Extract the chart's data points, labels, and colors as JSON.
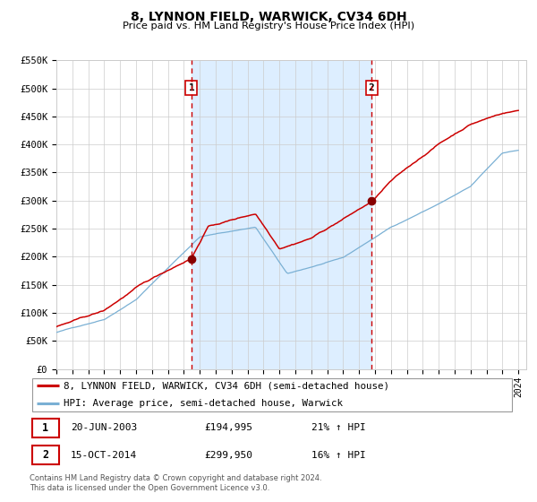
{
  "title": "8, LYNNON FIELD, WARWICK, CV34 6DH",
  "subtitle": "Price paid vs. HM Land Registry's House Price Index (HPI)",
  "ylim": [
    0,
    550000
  ],
  "yticks": [
    0,
    50000,
    100000,
    150000,
    200000,
    250000,
    300000,
    350000,
    400000,
    450000,
    500000,
    550000
  ],
  "ytick_labels": [
    "£0",
    "£50K",
    "£100K",
    "£150K",
    "£200K",
    "£250K",
    "£300K",
    "£350K",
    "£400K",
    "£450K",
    "£500K",
    "£550K"
  ],
  "red_line_color": "#cc0000",
  "blue_line_color": "#7ab0d4",
  "fill_color": "#ddeeff",
  "grid_color": "#cccccc",
  "background_color": "#ffffff",
  "sale1_year": 2003.47,
  "sale1_price": 194995,
  "sale1_date": "20-JUN-2003",
  "sale1_pct": "21%",
  "sale2_year": 2014.79,
  "sale2_price": 299950,
  "sale2_date": "15-OCT-2014",
  "sale2_pct": "16%",
  "legend_red": "8, LYNNON FIELD, WARWICK, CV34 6DH (semi-detached house)",
  "legend_blue": "HPI: Average price, semi-detached house, Warwick",
  "footer1": "Contains HM Land Registry data © Crown copyright and database right 2024.",
  "footer2": "This data is licensed under the Open Government Licence v3.0."
}
